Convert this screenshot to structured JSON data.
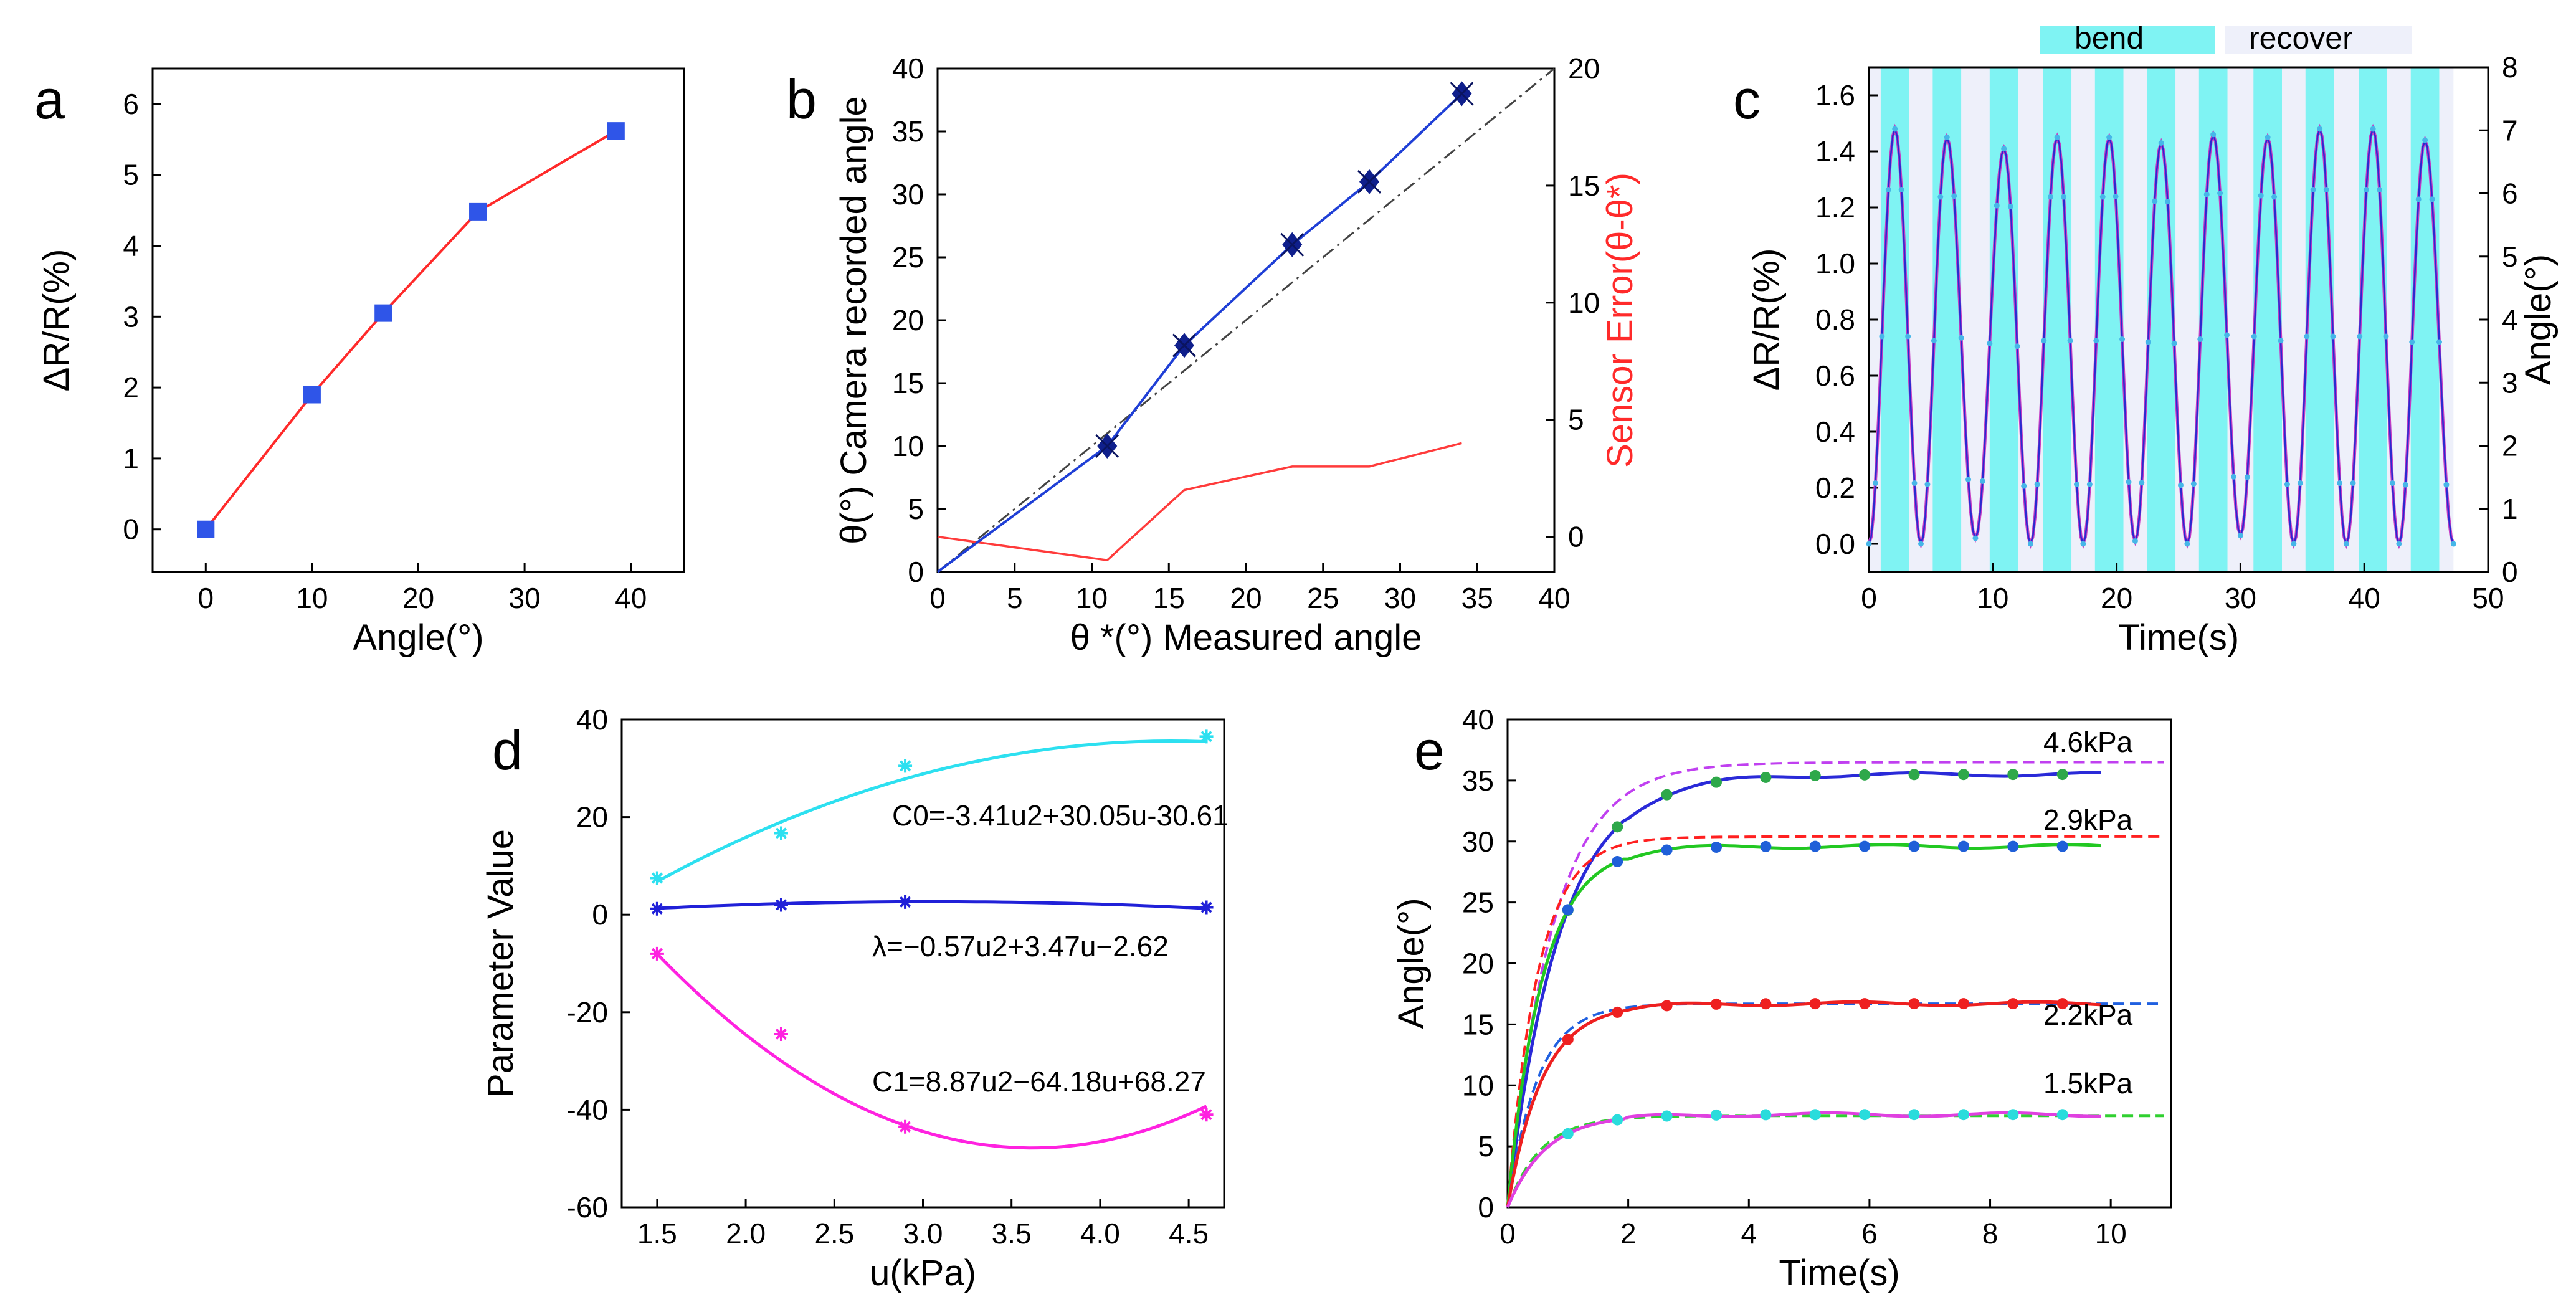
{
  "chart_data": [
    {
      "id": "a",
      "type": "line",
      "panel_label": "a",
      "xlabel": "Angle(°)",
      "ylabel": "ΔR/R(%)",
      "xlim": [
        -5,
        45
      ],
      "ylim": [
        -0.6,
        6.5
      ],
      "xticks": [
        "0",
        "10",
        "20",
        "30",
        "40"
      ],
      "yticks": [
        "0",
        "1",
        "2",
        "3",
        "4",
        "5",
        "6"
      ],
      "series": [
        {
          "name": "ΔR/R",
          "color": "#ff2a2a",
          "marker_color": "#2f55e8",
          "x": [
            0,
            10,
            16.7,
            25.6,
            38.6
          ],
          "y": [
            0.0,
            1.9,
            3.05,
            4.48,
            5.62
          ]
        }
      ]
    },
    {
      "id": "b",
      "type": "line",
      "panel_label": "b",
      "xlabel": "θ *(°) Measured angle",
      "ylabel": "θ(°) Camera recorded angle",
      "y2label": "Sensor Error(θ-θ*)",
      "xlim": [
        0,
        40
      ],
      "ylim": [
        0,
        40
      ],
      "y2lim": [
        -1.5,
        20
      ],
      "xticks": [
        "0",
        "5",
        "10",
        "15",
        "20",
        "25",
        "30",
        "35",
        "40"
      ],
      "yticks": [
        "0",
        "5",
        "10",
        "15",
        "20",
        "25",
        "30",
        "35",
        "40"
      ],
      "y2ticks": [
        "0",
        "5",
        "10",
        "15",
        "20"
      ],
      "series": [
        {
          "name": "Camera recorded angle",
          "color": "#1f3fd6",
          "marker_color": "#0f1f8c",
          "x": [
            0,
            11,
            16,
            23,
            28,
            34
          ],
          "y": [
            0,
            10,
            18,
            26,
            31,
            38
          ]
        },
        {
          "name": "Reference y=x",
          "color": "#444444",
          "dash": "dashdot",
          "x": [
            0,
            40
          ],
          "y": [
            0,
            40
          ]
        },
        {
          "name": "Sensor Error",
          "color": "#ff3b3b",
          "axis": "right",
          "x": [
            0,
            11,
            16,
            23,
            28,
            34
          ],
          "y": [
            0,
            -1,
            2,
            3,
            3,
            4
          ]
        }
      ]
    },
    {
      "id": "c",
      "type": "line",
      "panel_label": "c",
      "xlabel": "Time(s)",
      "ylabel": "ΔR/R(%)",
      "y2label": "Angle(°)",
      "xlim": [
        0,
        50
      ],
      "ylim": [
        -0.1,
        1.7
      ],
      "y2lim": [
        0,
        8
      ],
      "xticks": [
        "0",
        "10",
        "20",
        "30",
        "40",
        "50"
      ],
      "yticks": [
        "0.0",
        "0.2",
        "0.4",
        "0.6",
        "0.8",
        "1.0",
        "1.2",
        "1.4",
        "1.6"
      ],
      "y2ticks": [
        "0",
        "1",
        "2",
        "3",
        "4",
        "5",
        "6",
        "7",
        "8"
      ],
      "legend": [
        "bend",
        "recover"
      ],
      "legend_colors": [
        "#7ff3f3",
        "#eef0fa"
      ],
      "cycles": 11,
      "period_s": 4.2,
      "peak_times": [
        2.1,
        6.3,
        10.9,
        15.2,
        19.4,
        23.6,
        27.8,
        32.2,
        36.4,
        40.7,
        44.9
      ],
      "peak_values": [
        1.48,
        1.45,
        1.41,
        1.45,
        1.45,
        1.43,
        1.46,
        1.45,
        1.48,
        1.48,
        1.44
      ],
      "trough_values": [
        0.0,
        0.02,
        0.0,
        0.0,
        0.01,
        0.0,
        0.03,
        0.0,
        0.0,
        0.0,
        0.0
      ],
      "series": [
        {
          "name": "ΔR/R",
          "color": "#2a2ad0"
        },
        {
          "name": "Angle",
          "color": "#c43cc4"
        }
      ]
    },
    {
      "id": "d",
      "type": "scatter",
      "panel_label": "d",
      "xlabel": "u(kPa)",
      "ylabel": "Parameter Value",
      "xlim": [
        1.3,
        4.7
      ],
      "ylim": [
        -60,
        40
      ],
      "xticks": [
        "1.5",
        "2.0",
        "2.5",
        "3.0",
        "3.5",
        "4.0",
        "4.5"
      ],
      "yticks": [
        "-60",
        "-40",
        "-20",
        "0",
        "20",
        "40"
      ],
      "series": [
        {
          "name": "C0",
          "color": "#2de0f0",
          "x": [
            1.5,
            2.2,
            2.9,
            4.6
          ],
          "y": [
            7.5,
            16.7,
            30.5,
            36.5
          ],
          "fit": [
            -3.41,
            30.05,
            -30.61
          ],
          "label": "C0=-3.41u2+30.05u-30.61"
        },
        {
          "name": "λ",
          "color": "#2020d8",
          "x": [
            1.5,
            2.2,
            2.9,
            4.6
          ],
          "y": [
            1.2,
            2.0,
            2.6,
            1.5
          ],
          "fit": [
            -0.57,
            3.47,
            -2.62
          ],
          "label": "λ=−0.57u2+3.47u−2.62"
        },
        {
          "name": "C1",
          "color": "#ff22e0",
          "x": [
            1.5,
            2.2,
            2.9,
            4.6
          ],
          "y": [
            -8.0,
            -24.5,
            -43.5,
            -41.0
          ],
          "fit": [
            8.87,
            -64.18,
            68.27
          ],
          "label": "C1=8.87u2−64.18u+68.27"
        }
      ]
    },
    {
      "id": "e",
      "type": "line",
      "panel_label": "e",
      "xlabel": "Time(s)",
      "ylabel": "Angle(°)",
      "xlim": [
        0,
        11
      ],
      "ylim": [
        0,
        40
      ],
      "xticks": [
        "0",
        "2",
        "4",
        "6",
        "8",
        "10"
      ],
      "yticks": [
        "0",
        "5",
        "10",
        "15",
        "20",
        "25",
        "30",
        "35",
        "40"
      ],
      "series": [
        {
          "name": "4.6kPa",
          "steady": 35.5,
          "model_steady": 36.5,
          "color": "#2a2ad8",
          "marker": "#2ea84a",
          "model_color": "#c040f0"
        },
        {
          "name": "2.9kPa",
          "steady": 29.6,
          "model_steady": 30.4,
          "color": "#22c822",
          "marker": "#1f5fd8",
          "model_color": "#ff2020"
        },
        {
          "name": "2.2kPa",
          "steady": 16.7,
          "model_steady": 16.7,
          "color": "#ee2020",
          "marker": "#ee2020",
          "model_color": "#2060e0"
        },
        {
          "name": "1.5kPa",
          "steady": 7.6,
          "model_steady": 7.5,
          "color": "#e040e0",
          "marker": "#2adcdc",
          "model_color": "#30d030"
        }
      ]
    }
  ]
}
